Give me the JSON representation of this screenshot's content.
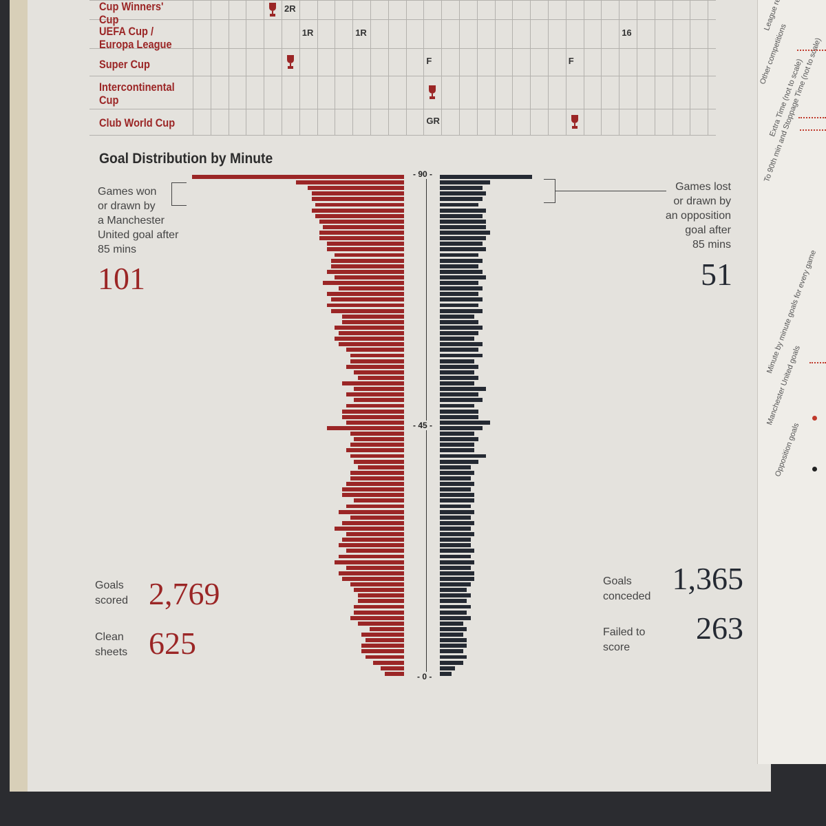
{
  "competitions": [
    {
      "label": "Cup Winners' Cup",
      "marks": [
        {
          "text": "2R",
          "col": 5
        }
      ],
      "trophies": [
        4
      ]
    },
    {
      "label": "UEFA Cup / Europa League",
      "marks": [
        {
          "text": "1R",
          "col": 6
        },
        {
          "text": "1R",
          "col": 9
        },
        {
          "text": "16",
          "col": 24
        }
      ],
      "trophies": []
    },
    {
      "label": "Super Cup",
      "marks": [
        {
          "text": "F",
          "col": 13
        },
        {
          "text": "F",
          "col": 21
        }
      ],
      "trophies": [
        5
      ]
    },
    {
      "label": "Intercontinental Cup",
      "marks": [],
      "trophies": [
        13
      ]
    },
    {
      "label": "Club World Cup",
      "marks": [
        {
          "text": "GR",
          "col": 13
        }
      ],
      "trophies": [
        21
      ]
    }
  ],
  "chart": {
    "title": "Goal Distribution by Minute",
    "left_annotation": [
      "Games won",
      "or drawn by",
      "a Manchester",
      "United goal after",
      "85 mins"
    ],
    "left_annotation_value": "101",
    "right_annotation": [
      "Games lost",
      "or drawn by",
      "an opposition",
      "goal after",
      "85 mins"
    ],
    "right_annotation_value": "51",
    "goals_scored_label": [
      "Goals",
      "scored"
    ],
    "goals_scored": "2,769",
    "clean_sheets_label": [
      "Clean",
      "sheets"
    ],
    "clean_sheets": "625",
    "goals_conceded_label": [
      "Goals",
      "conceded"
    ],
    "goals_conceded": "1,365",
    "failed_to_score_label": [
      "Failed to",
      "score"
    ],
    "failed_to_score": "263",
    "ticks": [
      "- 90 -",
      "- 45 -",
      "- 0 -"
    ]
  },
  "side_notes": {
    "league_results": "League results",
    "other_competitions": "Other competitions",
    "extra_time": "Extra Time (not to scale)",
    "stoppage": "To 90th min and Stoppage Time (not to scale)",
    "minute_by_minute": "Minute by minute goals for every game",
    "mu_goals": "Manchester United goals",
    "opp_goals": "Opposition goals"
  },
  "colors": {
    "united": "#9b2626",
    "opposition": "#252a33"
  },
  "chart_data": {
    "type": "bar",
    "title": "Goal Distribution by Minute",
    "xlabel": "",
    "ylabel": "",
    "y_ticks": [
      0,
      45,
      90
    ],
    "minutes": [
      1,
      2,
      3,
      4,
      5,
      6,
      7,
      8,
      9,
      10,
      11,
      12,
      13,
      14,
      15,
      16,
      17,
      18,
      19,
      20,
      21,
      22,
      23,
      24,
      25,
      26,
      27,
      28,
      29,
      30,
      31,
      32,
      33,
      34,
      35,
      36,
      37,
      38,
      39,
      40,
      41,
      42,
      43,
      44,
      45,
      46,
      47,
      48,
      49,
      50,
      51,
      52,
      53,
      54,
      55,
      56,
      57,
      58,
      59,
      60,
      61,
      62,
      63,
      64,
      65,
      66,
      67,
      68,
      69,
      70,
      71,
      72,
      73,
      74,
      75,
      76,
      77,
      78,
      79,
      80,
      81,
      82,
      83,
      84,
      85,
      86,
      87,
      88,
      89,
      90
    ],
    "series": [
      {
        "name": "Manchester United goals",
        "values": [
          5,
          6,
          8,
          10,
          11,
          11,
          10,
          11,
          9,
          12,
          14,
          13,
          13,
          12,
          12,
          13,
          14,
          16,
          17,
          15,
          18,
          17,
          15,
          17,
          16,
          15,
          18,
          16,
          14,
          17,
          15,
          13,
          16,
          16,
          15,
          14,
          14,
          12,
          13,
          14,
          15,
          14,
          13,
          14,
          20,
          15,
          16,
          16,
          15,
          13,
          15,
          13,
          16,
          12,
          13,
          15,
          14,
          14,
          15,
          17,
          18,
          17,
          18,
          16,
          16,
          19,
          20,
          19,
          20,
          17,
          21,
          18,
          20,
          19,
          19,
          18,
          20,
          20,
          22,
          22,
          21,
          22,
          23,
          24,
          23,
          24,
          24,
          25,
          28,
          55
        ]
      },
      {
        "name": "Opposition goals",
        "values": [
          3,
          4,
          6,
          7,
          6,
          7,
          7,
          6,
          7,
          6,
          8,
          7,
          8,
          7,
          8,
          7,
          8,
          9,
          9,
          8,
          9,
          8,
          9,
          8,
          8,
          9,
          8,
          9,
          8,
          9,
          8,
          9,
          9,
          8,
          9,
          8,
          9,
          8,
          10,
          12,
          9,
          9,
          10,
          9,
          11,
          13,
          10,
          10,
          9,
          11,
          10,
          12,
          9,
          10,
          9,
          10,
          9,
          11,
          10,
          11,
          9,
          10,
          11,
          10,
          9,
          11,
          10,
          11,
          10,
          11,
          10,
          12,
          11,
          10,
          11,
          10,
          12,
          11,
          12,
          13,
          12,
          12,
          11,
          12,
          10,
          11,
          12,
          11,
          13,
          24
        ]
      }
    ]
  }
}
